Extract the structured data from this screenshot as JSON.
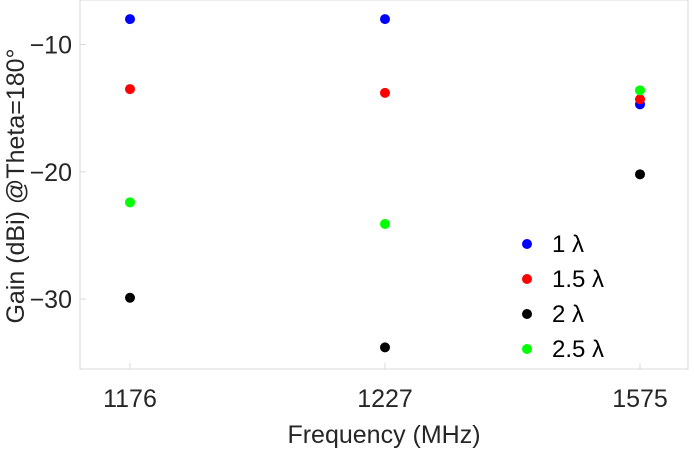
{
  "chart_data": {
    "type": "scatter",
    "title": "",
    "xlabel": "Frequency (MHz)",
    "ylabel": "Gain (dBi) @Theta=180°",
    "categories": [
      "1176",
      "1227",
      "1575"
    ],
    "ylim": [
      -35.5,
      -6.5
    ],
    "yticks": [
      -10,
      -20,
      -30
    ],
    "grid": false,
    "legend_position": "bottom-right",
    "series": [
      {
        "name": "1 λ",
        "color": "#0000ff",
        "values": [
          -8.0,
          -8.0,
          -14.7
        ]
      },
      {
        "name": "1.5 λ",
        "color": "#ff0000",
        "values": [
          -13.5,
          -13.8,
          -14.3
        ]
      },
      {
        "name": "2 λ",
        "color": "#000000",
        "values": [
          -29.9,
          -33.8,
          -20.2
        ]
      },
      {
        "name": "2.5 λ",
        "color": "#00ff00",
        "values": [
          -22.4,
          -24.1,
          -13.6
        ]
      }
    ]
  }
}
